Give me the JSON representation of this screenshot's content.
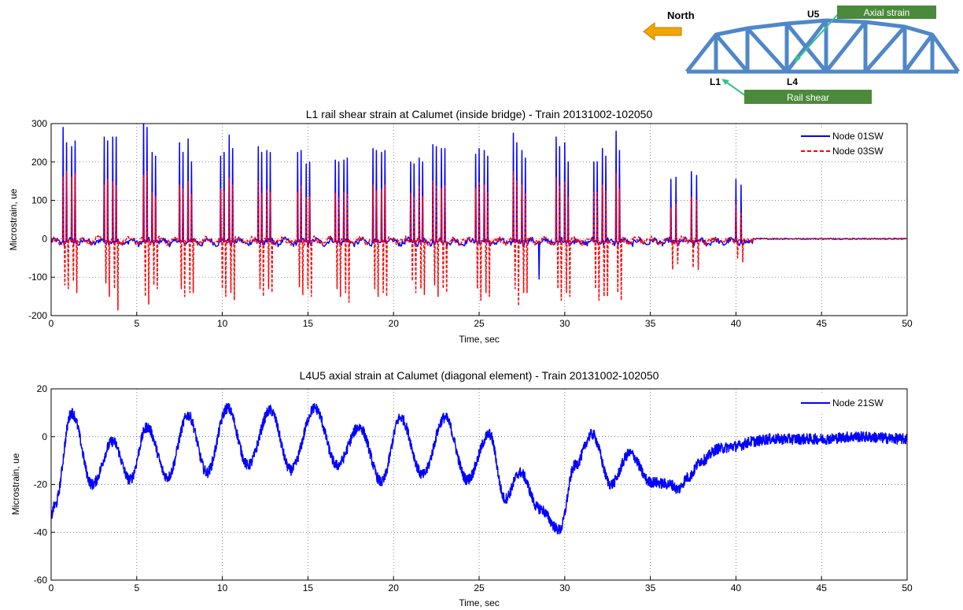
{
  "bridge_diagram": {
    "north_label": "North",
    "node_labels": [
      "U5",
      "L1",
      "L4"
    ],
    "callouts": [
      "Axial strain",
      "Rail shear"
    ],
    "colors": {
      "truss": "#4f87c9",
      "arrow": "#f0a500",
      "callout_bg": "#4a8a3a",
      "callout_text": "#ffffff",
      "leader": "#35c48a"
    }
  },
  "chart_data": [
    {
      "type": "line",
      "title": "L1 rail shear strain at Calumet (inside bridge) - Train 20131002-102050",
      "xlabel": "Time, sec",
      "ylabel": "Microstrain, ue",
      "xlim": [
        0,
        50
      ],
      "ylim": [
        -200,
        300
      ],
      "xticks": [
        "0",
        "5",
        "10",
        "15",
        "20",
        "25",
        "30",
        "35",
        "40",
        "45",
        "50"
      ],
      "yticks": [
        "-200",
        "-100",
        "0",
        "100",
        "200",
        "300"
      ],
      "grid": true,
      "legend_position": "top-right",
      "series": [
        {
          "name": "Node 01SW",
          "color": "#0000ff",
          "style": "solid",
          "peaks_t": [
            0.7,
            0.9,
            1.2,
            1.4,
            3.1,
            3.3,
            3.6,
            3.8,
            5.4,
            5.6,
            5.9,
            6.1,
            7.5,
            7.7,
            8.0,
            8.2,
            9.9,
            10.1,
            10.4,
            10.6,
            12.1,
            12.3,
            12.6,
            12.8,
            14.4,
            14.6,
            14.9,
            15.1,
            16.6,
            16.8,
            17.1,
            17.3,
            18.8,
            19.0,
            19.3,
            19.5,
            21.0,
            21.2,
            21.5,
            21.7,
            22.3,
            22.5,
            22.8,
            23.0,
            24.8,
            25.0,
            25.3,
            25.5,
            27.0,
            27.2,
            27.5,
            27.7,
            29.5,
            29.7,
            30.0,
            30.2,
            31.7,
            31.9,
            32.2,
            32.4,
            33.0,
            33.2,
            36.2,
            36.5,
            37.4,
            37.7,
            40.0,
            40.3
          ],
          "peaks_v": [
            290,
            250,
            240,
            255,
            265,
            255,
            265,
            265,
            320,
            290,
            225,
            215,
            250,
            225,
            260,
            200,
            215,
            225,
            270,
            235,
            240,
            225,
            230,
            225,
            225,
            230,
            195,
            200,
            205,
            200,
            205,
            210,
            235,
            230,
            225,
            230,
            200,
            195,
            210,
            200,
            245,
            240,
            235,
            235,
            220,
            235,
            230,
            215,
            275,
            250,
            230,
            210,
            265,
            240,
            250,
            200,
            200,
            200,
            235,
            215,
            280,
            230,
            155,
            160,
            175,
            165,
            155,
            140
          ],
          "troughs_t": [
            28.5
          ],
          "troughs_v": [
            -105
          ],
          "end_t": 50,
          "end_v": 0
        },
        {
          "name": "Node 03SW",
          "color": "#ff0000",
          "style": "dashed",
          "peaks_t": [
            0.7,
            0.9,
            1.2,
            1.4,
            3.1,
            3.3,
            3.6,
            3.8,
            5.4,
            5.6,
            5.9,
            6.1,
            7.5,
            7.7,
            8.0,
            8.2,
            9.9,
            10.1,
            10.4,
            10.6,
            12.1,
            12.3,
            12.6,
            12.8,
            14.4,
            14.6,
            14.9,
            15.1,
            16.6,
            16.8,
            17.1,
            17.3,
            18.8,
            19.0,
            19.3,
            19.5,
            21.0,
            21.2,
            21.5,
            21.7,
            22.3,
            22.5,
            22.8,
            23.0,
            24.8,
            25.0,
            25.3,
            25.5,
            27.0,
            27.2,
            27.5,
            27.7,
            29.5,
            29.7,
            30.0,
            30.2,
            31.7,
            31.9,
            32.2,
            32.4,
            33.0,
            33.2,
            36.2,
            36.5,
            37.4,
            37.7,
            40.0,
            40.3
          ],
          "peaks_v": [
            160,
            175,
            160,
            170,
            140,
            155,
            150,
            140,
            165,
            175,
            120,
            110,
            140,
            130,
            150,
            115,
            130,
            125,
            160,
            140,
            150,
            120,
            130,
            120,
            120,
            140,
            110,
            110,
            120,
            110,
            120,
            115,
            140,
            125,
            130,
            140,
            120,
            110,
            140,
            110,
            150,
            140,
            130,
            140,
            130,
            150,
            140,
            120,
            175,
            150,
            140,
            120,
            160,
            140,
            150,
            110,
            120,
            120,
            140,
            125,
            170,
            130,
            80,
            90,
            110,
            100,
            90,
            70
          ],
          "troughs_t": [
            0.8,
            1.0,
            1.3,
            1.5,
            3.2,
            3.4,
            3.7,
            3.9,
            5.5,
            5.7,
            6.0,
            6.2,
            7.6,
            7.8,
            8.1,
            8.3,
            10.0,
            10.2,
            10.5,
            10.7,
            12.2,
            12.4,
            12.7,
            12.9,
            14.5,
            14.7,
            15.0,
            15.2,
            16.7,
            16.9,
            17.2,
            17.4,
            18.9,
            19.1,
            19.4,
            19.6,
            21.1,
            21.3,
            21.6,
            21.8,
            22.4,
            22.6,
            22.9,
            23.1,
            24.9,
            25.1,
            25.4,
            25.6,
            27.1,
            27.3,
            27.6,
            27.8,
            29.6,
            29.8,
            30.1,
            30.3,
            31.8,
            32.0,
            32.3,
            32.5,
            33.1,
            33.3,
            36.3,
            36.6,
            37.5,
            37.8,
            40.1,
            40.4
          ],
          "troughs_v": [
            -120,
            -130,
            -110,
            -140,
            -115,
            -150,
            -130,
            -185,
            -150,
            -170,
            -120,
            -130,
            -130,
            -150,
            -140,
            -140,
            -130,
            -150,
            -140,
            -160,
            -130,
            -150,
            -130,
            -140,
            -125,
            -145,
            -130,
            -150,
            -130,
            -150,
            -140,
            -165,
            -130,
            -150,
            -140,
            -150,
            -110,
            -140,
            -130,
            -145,
            -120,
            -150,
            -130,
            -140,
            -130,
            -160,
            -140,
            -150,
            -130,
            -175,
            -140,
            -140,
            -130,
            -160,
            -140,
            -150,
            -130,
            -160,
            -150,
            -150,
            -140,
            -160,
            -80,
            -65,
            -75,
            -80,
            -50,
            -60
          ],
          "end_t": 50,
          "end_v": 0
        }
      ]
    },
    {
      "type": "line",
      "title": "L4U5 axial strain at Calumet (diagonal element) - Train 20131002-102050",
      "xlabel": "Time, sec",
      "ylabel": "Microstrain, ue",
      "xlim": [
        0,
        50
      ],
      "ylim": [
        -60,
        20
      ],
      "xticks": [
        "0",
        "5",
        "10",
        "15",
        "20",
        "25",
        "30",
        "35",
        "40",
        "45",
        "50"
      ],
      "yticks": [
        "-60",
        "-40",
        "-20",
        "0",
        "20"
      ],
      "grid": true,
      "legend_position": "top-right",
      "series": [
        {
          "name": "Node 21SW",
          "color": "#0000ff",
          "style": "solid",
          "x": [
            0,
            0.2,
            1.2,
            2.4,
            3.6,
            4.6,
            5.6,
            6.8,
            8.0,
            9.1,
            10.3,
            11.5,
            12.8,
            14.0,
            15.4,
            16.7,
            18.0,
            19.3,
            20.4,
            21.7,
            23.0,
            24.3,
            25.6,
            26.5,
            27.4,
            28.5,
            29.7,
            30.6,
            31.6,
            32.7,
            33.8,
            35.0,
            36.2,
            36.6,
            37.2,
            38.0,
            39.0,
            40.0,
            41.0,
            42.0,
            43.0,
            45.0,
            47.0,
            50.0
          ],
          "y": [
            -33,
            -29,
            10,
            -20,
            -2,
            -18,
            4,
            -17,
            9,
            -15,
            12,
            -12,
            11,
            -14,
            12,
            -12,
            4,
            -19,
            8,
            -16,
            8,
            -18,
            1,
            -26,
            -15,
            -30,
            -39,
            -12,
            1,
            -20,
            -7,
            -19,
            -20,
            -22,
            -17,
            -10,
            -5,
            -4,
            -2,
            -1,
            -1,
            -1,
            0,
            -1
          ]
        }
      ]
    }
  ]
}
